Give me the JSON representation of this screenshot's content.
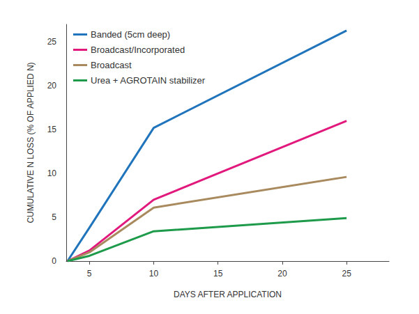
{
  "chart_data": {
    "type": "line",
    "x_label": "DAYS AFTER APPLICATION",
    "y_label": "CUMULATIVE N LOSS (% OF APPLIED N)",
    "x": [
      3.3,
      5,
      10,
      25
    ],
    "series": [
      {
        "name": "Banded (5cm deep)",
        "color": "#1f74bb",
        "values": [
          0,
          3.8,
          15.2,
          26.3
        ]
      },
      {
        "name": "Broadcast/Incorporated",
        "color": "#e2197d",
        "values": [
          0,
          1.2,
          7.0,
          16.0
        ]
      },
      {
        "name": "Broadcast",
        "color": "#a98a5e",
        "values": [
          0,
          1.0,
          6.1,
          9.6
        ]
      },
      {
        "name": "Urea + AGROTAIN stabilizer",
        "color": "#1d9a4a",
        "values": [
          0,
          0.6,
          3.4,
          4.9
        ]
      }
    ],
    "xlim": [
      3.2,
      28.3
    ],
    "xticks": [
      5,
      10,
      15,
      20,
      25
    ],
    "ylim": [
      0,
      27
    ],
    "yticks": [
      0,
      5,
      10,
      15,
      20,
      25
    ],
    "grid": false,
    "legend": "top-left"
  }
}
